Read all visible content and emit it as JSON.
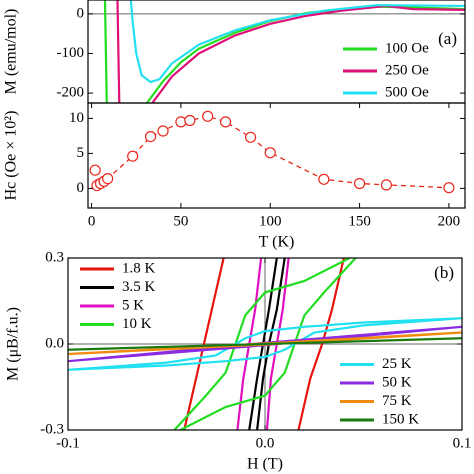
{
  "chart_data": [
    {
      "type": "line",
      "y_label": "M (emu/mol)",
      "annotation": "(a)",
      "xlim": [
        -2,
        209
      ],
      "ylim": [
        -225,
        35
      ],
      "yticks": [
        -200,
        -100,
        0
      ],
      "zero_lines": true,
      "legend": "lower right",
      "series": [
        {
          "name": "100 Oe",
          "color": "#22dd22",
          "x": [
            7.5,
            8.5,
            null,
            31,
            40,
            50,
            60,
            80,
            100,
            120,
            140,
            160,
            180,
            209
          ],
          "values": [
            35,
            -225,
            null,
            -225,
            -170,
            -122,
            -88,
            -48,
            -18,
            2,
            12,
            18,
            16,
            12
          ]
        },
        {
          "name": "250 Oe",
          "color": "#dd1177",
          "x": [
            14.5,
            15.5,
            null,
            34,
            45,
            60,
            80,
            100,
            120,
            140,
            165,
            180,
            209
          ],
          "values": [
            35,
            -225,
            null,
            -225,
            -158,
            -100,
            -55,
            -25,
            -5,
            8,
            20,
            12,
            10
          ]
        },
        {
          "name": "500 Oe",
          "color": "#22e0f0",
          "x": [
            22,
            23,
            25,
            28,
            33,
            38,
            45,
            60,
            80,
            100,
            130,
            160,
            209
          ],
          "values": [
            35,
            -20,
            -100,
            -155,
            -172,
            -165,
            -125,
            -78,
            -42,
            -16,
            8,
            22,
            20
          ]
        }
      ]
    },
    {
      "type": "scatter",
      "x_label": "T (K)",
      "y_label": "Hc (Oe × 10²)",
      "xlim": [
        -2,
        209
      ],
      "ylim": [
        -2.8,
        12.2
      ],
      "xticks": [
        0,
        50,
        100,
        150,
        200
      ],
      "yticks": [
        0,
        5,
        10
      ],
      "series": [
        {
          "color": "#e8281e",
          "marker": "open-circle",
          "line": "dashed",
          "x": [
            2,
            3,
            5,
            7,
            9,
            23,
            33,
            40,
            50,
            55,
            65,
            75,
            89,
            100,
            130,
            150,
            165,
            200
          ],
          "values": [
            2.6,
            0.4,
            0.7,
            1.0,
            1.4,
            4.6,
            7.4,
            8.2,
            9.5,
            9.7,
            10.3,
            9.5,
            7.3,
            5.1,
            1.3,
            0.7,
            0.5,
            0.1
          ]
        }
      ]
    },
    {
      "type": "line",
      "x_label": "H (T)",
      "y_label": "M (μB/f.u.)",
      "annotation": "(b)",
      "xlim": [
        -0.1,
        0.1
      ],
      "ylim": [
        -0.3,
        0.3
      ],
      "xticks": [
        -0.1,
        {
          "value": 0,
          "label": "0.0"
        },
        0.1
      ],
      "yticks": [
        -0.3,
        {
          "value": 0,
          "label": "0.0"
        },
        0.3
      ],
      "zero_lines": true,
      "series": [
        {
          "name": "1.8 K",
          "color": "#e8140e",
          "legend": "upper left",
          "x": [
            -0.021,
            -0.027,
            -0.031,
            -0.035,
            -0.041,
            null,
            0.017,
            0.023,
            0.029,
            0.034,
            0.04
          ],
          "values": [
            0.3,
            0.12,
            0,
            -0.12,
            -0.3,
            null,
            -0.3,
            -0.12,
            0,
            0.12,
            0.3
          ]
        },
        {
          "name": "3.5 K",
          "color": "#000000",
          "legend": "upper left",
          "x": [
            0.006,
            0.002,
            -0.001,
            -0.004,
            -0.008,
            null,
            -0.004,
            -0.001,
            0.002,
            0.006,
            0.01
          ],
          "values": [
            0.3,
            0.12,
            0,
            -0.12,
            -0.3,
            null,
            -0.3,
            -0.12,
            0,
            0.12,
            0.3
          ]
        },
        {
          "name": "5 K",
          "color": "#e010c0",
          "legend": "upper left",
          "x": [
            -0.002,
            -0.005,
            -0.008,
            -0.011,
            -0.014,
            null,
            0.001,
            0.003,
            0.006,
            0.009,
            0.012
          ],
          "values": [
            0.3,
            0.12,
            0,
            -0.12,
            -0.3,
            null,
            -0.3,
            -0.12,
            0,
            0.12,
            0.3
          ]
        },
        {
          "name": "10 K",
          "color": "#22dd22",
          "legend": "upper left",
          "x": [
            -0.043,
            -0.02,
            0,
            0.01,
            0.015,
            0.02,
            0.03,
            0.046,
            null,
            0.043,
            0.02,
            0,
            -0.01,
            -0.015,
            -0.02,
            -0.03,
            -0.046
          ],
          "values": [
            -0.3,
            -0.22,
            -0.18,
            -0.1,
            0,
            0.1,
            0.18,
            0.3,
            null,
            0.3,
            0.22,
            0.18,
            0.1,
            0,
            -0.1,
            -0.18,
            -0.3
          ]
        },
        {
          "name": "25 K",
          "color": "#22e0f0",
          "legend": "lower right",
          "x": [
            -0.1,
            -0.05,
            -0.02,
            0,
            0.01,
            0.015,
            0.025,
            0.05,
            0.1,
            0.05,
            0.02,
            0,
            -0.01,
            -0.015,
            -0.025,
            -0.05,
            -0.1
          ],
          "values": [
            -0.09,
            -0.075,
            -0.06,
            -0.045,
            -0.02,
            0,
            0.04,
            0.065,
            0.09,
            0.075,
            0.06,
            0.045,
            0.02,
            0,
            -0.04,
            -0.065,
            -0.09
          ]
        },
        {
          "name": "50 K",
          "color": "#8a2be2",
          "legend": "lower right",
          "x": [
            -0.1,
            0,
            0.1,
            0,
            -0.1
          ],
          "values": [
            -0.06,
            -0.004,
            0.06,
            0.004,
            -0.06
          ]
        },
        {
          "name": "75 K",
          "color": "#f08a10",
          "legend": "lower right",
          "x": [
            -0.1,
            0,
            0.1,
            0,
            -0.1
          ],
          "values": [
            -0.035,
            -0.002,
            0.04,
            0.002,
            -0.035
          ]
        },
        {
          "name": "150 K",
          "color": "#1a7a10",
          "legend": "lower right",
          "x": [
            -0.1,
            0.1
          ],
          "values": [
            -0.02,
            0.02
          ]
        }
      ]
    }
  ]
}
